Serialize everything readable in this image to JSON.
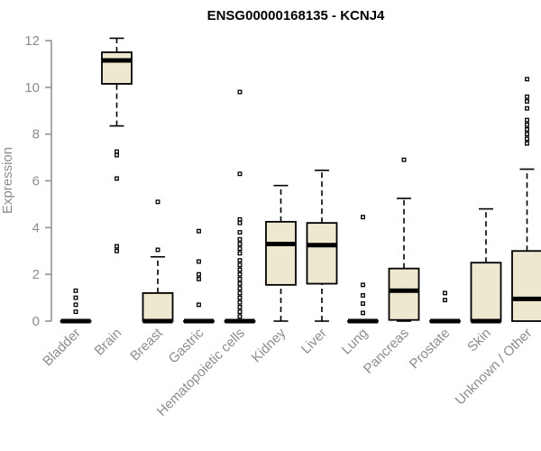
{
  "chart_data": {
    "type": "boxplot",
    "title": "ENSG00000168135 - KCNJ4",
    "ylabel": "Expression",
    "xlabel": "",
    "ylim": [
      0,
      12
    ],
    "yticks": [
      0,
      2,
      4,
      6,
      8,
      10,
      12
    ],
    "box_fill": "#efe8d0",
    "categories": [
      "Bladder",
      "Brain",
      "Breast",
      "Gastric",
      "Hematopoietic cells",
      "Kidney",
      "Liver",
      "Lung",
      "Pancreas",
      "Prostate",
      "Skin",
      "Unknown / Other"
    ],
    "boxes": [
      {
        "min": 0,
        "q1": 0,
        "median": 0,
        "q3": 0,
        "max": 0,
        "outliers": [
          0.4,
          0.7,
          1.0,
          1.3
        ]
      },
      {
        "min": 8.35,
        "q1": 10.15,
        "median": 11.15,
        "q3": 11.5,
        "max": 12.1,
        "outliers": [
          3.0,
          3.2,
          6.1,
          7.1,
          7.25
        ]
      },
      {
        "min": 0,
        "q1": 0,
        "median": 0,
        "q3": 1.2,
        "max": 2.75,
        "outliers": [
          3.05,
          5.1
        ]
      },
      {
        "min": 0,
        "q1": 0,
        "median": 0,
        "q3": 0,
        "max": 0,
        "outliers": [
          0.7,
          1.8,
          2.0,
          2.55,
          3.85
        ]
      },
      {
        "min": 0,
        "q1": 0,
        "median": 0,
        "q3": 0,
        "max": 0,
        "outliers": [
          0.2,
          0.4,
          0.6,
          0.8,
          1.0,
          1.2,
          1.4,
          1.6,
          1.8,
          2.0,
          2.2,
          2.4,
          2.6,
          2.9,
          3.1,
          3.3,
          3.5,
          3.8,
          4.2,
          4.35,
          6.3,
          9.8
        ]
      },
      {
        "min": 0,
        "q1": 1.55,
        "median": 3.3,
        "q3": 4.25,
        "max": 5.8,
        "outliers": []
      },
      {
        "min": 0,
        "q1": 1.6,
        "median": 3.25,
        "q3": 4.2,
        "max": 6.45,
        "outliers": []
      },
      {
        "min": 0,
        "q1": 0,
        "median": 0,
        "q3": 0,
        "max": 0,
        "outliers": [
          0.35,
          0.75,
          1.1,
          1.55,
          4.45
        ]
      },
      {
        "min": 0,
        "q1": 0.05,
        "median": 1.3,
        "q3": 2.25,
        "max": 5.25,
        "outliers": [
          6.9
        ]
      },
      {
        "min": 0,
        "q1": 0,
        "median": 0,
        "q3": 0,
        "max": 0,
        "outliers": [
          0.9,
          1.2
        ]
      },
      {
        "min": 0,
        "q1": 0,
        "median": 0,
        "q3": 2.5,
        "max": 4.8,
        "outliers": []
      },
      {
        "min": 0,
        "q1": 0,
        "median": 0.95,
        "q3": 3.0,
        "max": 6.5,
        "outliers": [
          7.6,
          7.8,
          8.0,
          8.2,
          8.4,
          8.6,
          9.1,
          9.4,
          9.6,
          10.35
        ]
      }
    ]
  }
}
